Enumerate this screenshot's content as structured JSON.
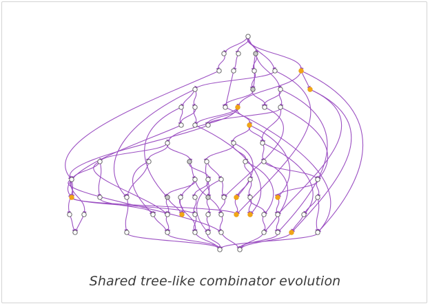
{
  "caption": "Shared tree-like combinator evolution",
  "colors": {
    "edge": "#9b4fc2",
    "node_plain": "#ffffff",
    "node_gray": "#c9c9c9",
    "node_orange": "#f2a516",
    "node_stroke": "#555555"
  }
}
